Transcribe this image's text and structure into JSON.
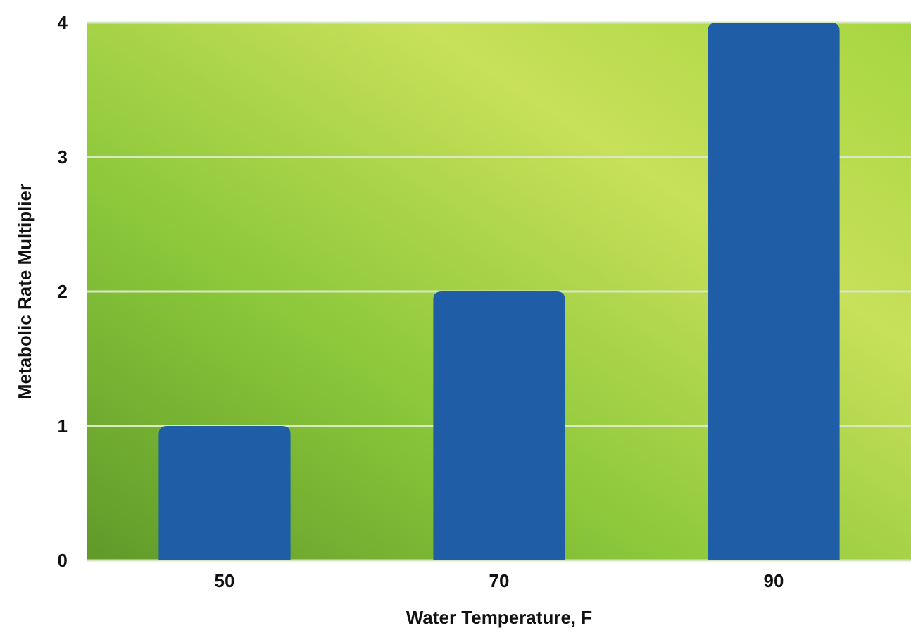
{
  "chart_data": {
    "type": "bar",
    "xlabel": "Water Temperature, F",
    "ylabel": "Metabolic Rate Multiplier",
    "categories": [
      "50",
      "70",
      "90"
    ],
    "values": [
      1,
      2,
      4
    ],
    "color": "#1f5da6",
    "ylim": [
      0,
      4
    ],
    "yticks": [
      0,
      1,
      2,
      3,
      4
    ],
    "grid": "y"
  }
}
